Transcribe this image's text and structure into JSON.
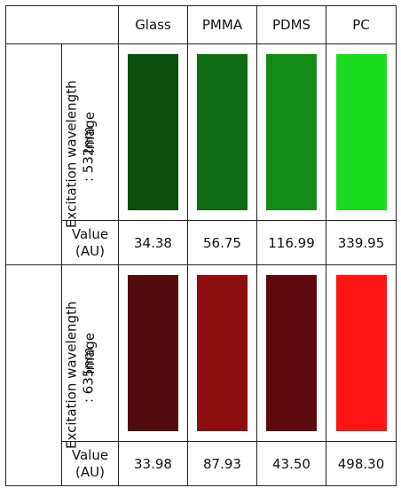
{
  "columns": [
    "Glass",
    "PMMA",
    "PDMS",
    "PC"
  ],
  "groups": [
    {
      "label_line1": "Excitation wavelength",
      "label_line2": ": 532nm",
      "image_label": "Image",
      "value_label_line1": "Value",
      "value_label_line2": "(AU)",
      "swatch_colors": [
        "#0b4f0d",
        "#0d6b12",
        "#138a18",
        "#1ddc1f"
      ],
      "values": [
        "34.38",
        "56.75",
        "116.99",
        "339.95"
      ]
    },
    {
      "label_line1": "Excitation wavelength",
      "label_line2": ": 635nm",
      "image_label": "Image",
      "value_label_line1": "Value",
      "value_label_line2": "(AU)",
      "swatch_colors": [
        "#520b0b",
        "#8a0e0e",
        "#5e0a0d",
        "#ff1414"
      ],
      "values": [
        "33.98",
        "87.93",
        "43.50",
        "498.30"
      ]
    }
  ]
}
